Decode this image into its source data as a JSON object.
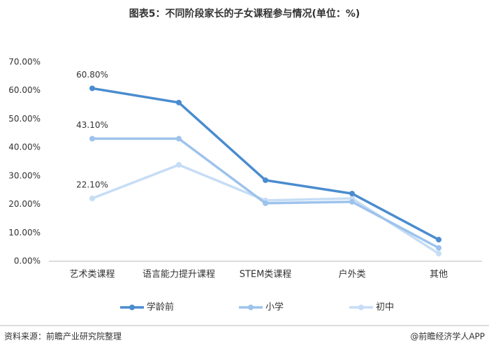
{
  "chart_data": {
    "type": "line",
    "title": "图表5：不同阶段家长的子女课程参与情况(单位：%)",
    "categories": [
      "艺术类课程",
      "语言能力提升课程",
      "STEM类课程",
      "户外类",
      "其他"
    ],
    "series": [
      {
        "name": "学龄前",
        "color": "#4a8ccf",
        "values": [
          60.8,
          55.8,
          28.5,
          23.8,
          7.6
        ],
        "value_labels": [
          "60.80%",
          null,
          null,
          null,
          null
        ]
      },
      {
        "name": "小学",
        "color": "#9dc3ec",
        "values": [
          43.1,
          43.1,
          20.4,
          20.9,
          4.7
        ],
        "value_labels": [
          "43.10%",
          null,
          null,
          null,
          null
        ]
      },
      {
        "name": "初中",
        "color": "#c6ddf5",
        "values": [
          22.1,
          33.9,
          21.4,
          22.1,
          2.7
        ],
        "value_labels": [
          "22.10%",
          null,
          null,
          null,
          null
        ]
      }
    ],
    "ylim": [
      0,
      70
    ],
    "yticks": [
      {
        "value": 0,
        "label": "0.00%"
      },
      {
        "value": 10,
        "label": "10.00%"
      },
      {
        "value": 20,
        "label": "20.00%"
      },
      {
        "value": 30,
        "label": "30.00%"
      },
      {
        "value": 40,
        "label": "40.00%"
      },
      {
        "value": 50,
        "label": "50.00%"
      },
      {
        "value": 60,
        "label": "60.00%"
      },
      {
        "value": 70,
        "label": "70.00%"
      }
    ],
    "grid": false,
    "legend": "bottom",
    "source": "资料来源：前瞻产业研究院整理",
    "credit": "@前瞻经济学人APP"
  }
}
